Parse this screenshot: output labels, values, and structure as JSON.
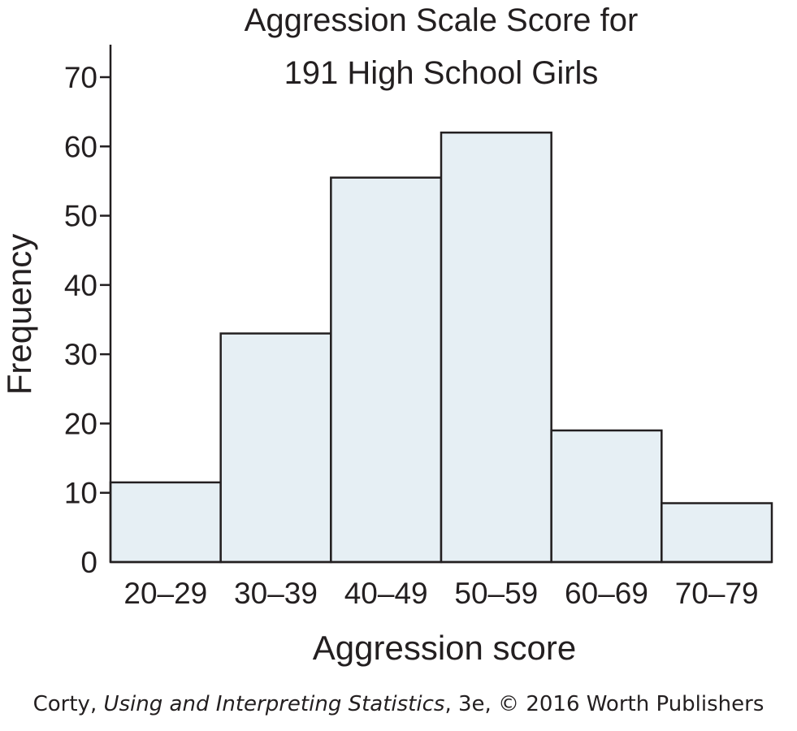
{
  "chart_data": {
    "type": "bar",
    "title": [
      "Aggression Scale Score for",
      "191 High School Girls"
    ],
    "xlabel": "Aggression score",
    "ylabel": "Frequency",
    "categories": [
      "20–29",
      "30–39",
      "40–49",
      "50–59",
      "60–69",
      "70–79"
    ],
    "values": [
      11.5,
      33,
      55.5,
      62,
      19,
      8.5
    ],
    "ylim": [
      0,
      70
    ],
    "yticks": [
      0,
      10,
      20,
      30,
      40,
      50,
      60,
      70
    ],
    "grid": false,
    "bar_fill": "#e6eff4",
    "bar_stroke": "#231f20"
  },
  "credit": {
    "author": "Corty, ",
    "book": "Using and Interpreting Statistics",
    "rest": ", 3e, © 2016 Worth Publishers"
  }
}
